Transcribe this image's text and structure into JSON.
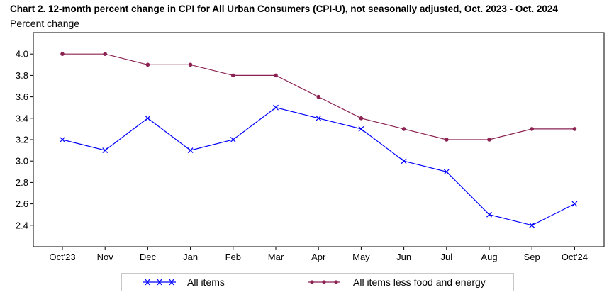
{
  "title": "Chart 2. 12-month percent change in CPI for All Urban Consumers (CPI-U), not seasonally adjusted, Oct. 2023 - Oct. 2024",
  "ylabel": "Percent change",
  "colors": {
    "all_items": "#0000ff",
    "core": "#8b2252"
  },
  "chart_data": {
    "type": "line",
    "title": "Chart 2. 12-month percent change in CPI for All Urban Consumers (CPI-U), not seasonally adjusted, Oct. 2023 - Oct. 2024",
    "ylabel": "Percent change",
    "xlabel": "",
    "categories": [
      "Oct'23",
      "Nov",
      "Dec",
      "Jan",
      "Feb",
      "Mar",
      "Apr",
      "May",
      "Jun",
      "Jul",
      "Aug",
      "Sep",
      "Oct'24"
    ],
    "ylim": [
      2.2,
      4.2
    ],
    "yticks": [
      "4.0",
      "3.8",
      "3.6",
      "3.4",
      "3.2",
      "3.0",
      "2.8",
      "2.6",
      "2.4"
    ],
    "series": [
      {
        "name": "All items",
        "marker": "x",
        "color": "#0000ff",
        "values": [
          3.2,
          3.1,
          3.4,
          3.1,
          3.2,
          3.5,
          3.4,
          3.3,
          3.0,
          2.9,
          2.5,
          2.4,
          2.6
        ]
      },
      {
        "name": "All items less food and energy",
        "marker": "dot",
        "color": "#8b2252",
        "values": [
          4.0,
          4.0,
          3.9,
          3.9,
          3.8,
          3.8,
          3.6,
          3.4,
          3.3,
          3.2,
          3.2,
          3.3,
          3.3
        ]
      }
    ],
    "grid": false,
    "legend": "bottom"
  }
}
